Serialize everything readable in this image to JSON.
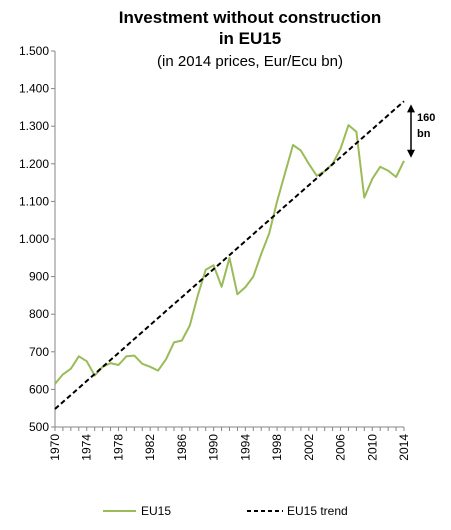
{
  "chart_data": {
    "type": "line",
    "title_line1": "Investment without construction",
    "title_line2": "in EU15",
    "subtitle": "(in 2014 prices, Eur/Ecu bn)",
    "xlabel": "",
    "ylabel": "",
    "xlim": [
      1970,
      2014
    ],
    "ylim": [
      500,
      1500
    ],
    "y_ticks": [
      "500",
      "600",
      "700",
      "800",
      "900",
      "1.000",
      "1.100",
      "1.200",
      "1.300",
      "1.400",
      "1.500"
    ],
    "y_tick_values": [
      500,
      600,
      700,
      800,
      900,
      1000,
      1100,
      1200,
      1300,
      1400,
      1500
    ],
    "x_ticks": [
      "1970",
      "1974",
      "1978",
      "1982",
      "1986",
      "1990",
      "1994",
      "1998",
      "2002",
      "2006",
      "2010",
      "2014"
    ],
    "x_tick_values": [
      1970,
      1974,
      1978,
      1982,
      1986,
      1990,
      1994,
      1998,
      2002,
      2006,
      2010,
      2014
    ],
    "grid": false,
    "legend_position": "bottom",
    "x": [
      1970,
      1971,
      1972,
      1973,
      1974,
      1975,
      1976,
      1977,
      1978,
      1979,
      1980,
      1981,
      1982,
      1983,
      1984,
      1985,
      1986,
      1987,
      1988,
      1989,
      1990,
      1991,
      1992,
      1993,
      1994,
      1995,
      1996,
      1997,
      1998,
      1999,
      2000,
      2001,
      2002,
      2003,
      2004,
      2005,
      2006,
      2007,
      2008,
      2009,
      2010,
      2011,
      2012,
      2013,
      2014
    ],
    "series": [
      {
        "name": "EU15",
        "color": "#9bbb59",
        "style": "solid",
        "values": [
          615,
          640,
          655,
          688,
          675,
          637,
          660,
          670,
          665,
          688,
          690,
          668,
          660,
          650,
          680,
          725,
          730,
          770,
          850,
          918,
          930,
          873,
          950,
          853,
          872,
          900,
          960,
          1015,
          1100,
          1175,
          1250,
          1235,
          1200,
          1168,
          1180,
          1200,
          1240,
          1303,
          1285,
          1110,
          1160,
          1192,
          1182,
          1165,
          1208
        ]
      },
      {
        "name": "EU15 trend",
        "color": "#000000",
        "style": "dashed",
        "values": [
          548,
          566.6,
          585.2,
          603.8,
          622.4,
          641,
          659.6,
          678.2,
          696.8,
          715.4,
          734,
          752.6,
          771.2,
          789.8,
          808.4,
          827,
          845.6,
          864.2,
          882.8,
          901.4,
          920,
          938.6,
          957.2,
          975.8,
          994.4,
          1013,
          1031.6,
          1050.2,
          1068.8,
          1087.4,
          1106,
          1124.6,
          1143.2,
          1161.8,
          1180.4,
          1199,
          1217.6,
          1236.2,
          1254.8,
          1273.4,
          1292,
          1310.6,
          1329.2,
          1347.8,
          1366.4
        ]
      }
    ],
    "annotation": {
      "label_line1": "160",
      "label_line2": "bn",
      "year": 2014,
      "from_value": 1208,
      "to_value": 1366
    }
  }
}
